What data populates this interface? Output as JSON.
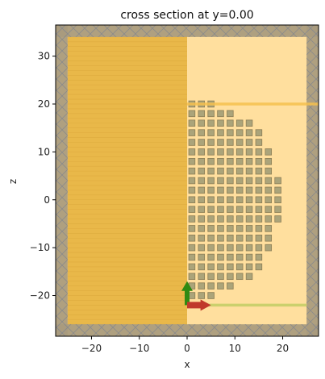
{
  "chart_data": {
    "type": "heatmap",
    "title": "cross section at y=0.00",
    "xlabel": "x",
    "ylabel": "z",
    "xlim": [
      -27.5,
      27.5
    ],
    "ylim": [
      -28.5,
      36.5
    ],
    "x_ticks": [
      -20,
      -10,
      0,
      10,
      20
    ],
    "x_tick_labels": [
      "−20",
      "−10",
      "0",
      "10",
      "20"
    ],
    "y_ticks": [
      -20,
      -10,
      0,
      10,
      20,
      30
    ],
    "y_tick_labels": [
      "−20",
      "−10",
      "0",
      "10",
      "20",
      "30"
    ],
    "grid": false,
    "boundary": {
      "x": [
        -27.5,
        27.5
      ],
      "z": [
        -28.5,
        36.5
      ],
      "pml_x_thickness": 2.5,
      "pml_z_thickness": 2.5
    },
    "simulation_domain": {
      "x": [
        -25,
        25
      ],
      "z": [
        -26,
        34
      ]
    },
    "substrate": {
      "x": [
        -25,
        0
      ],
      "z": [
        -26,
        34
      ],
      "color": "#e8b545"
    },
    "lattice": {
      "cell_size": 2,
      "square_size": 1.3,
      "center_z": 0,
      "x_start": 0,
      "row_extents": [
        {
          "z": 20,
          "x_max": 6
        },
        {
          "z": 18,
          "x_max": 10
        },
        {
          "z": 16,
          "x_max": 14
        },
        {
          "z": 14,
          "x_max": 16
        },
        {
          "z": 12,
          "x_max": 16
        },
        {
          "z": 10,
          "x_max": 18
        },
        {
          "z": 8,
          "x_max": 18
        },
        {
          "z": 6,
          "x_max": 18
        },
        {
          "z": 4,
          "x_max": 20
        },
        {
          "z": 2,
          "x_max": 20
        },
        {
          "z": 0,
          "x_max": 20
        },
        {
          "z": -2,
          "x_max": 20
        },
        {
          "z": -4,
          "x_max": 20
        },
        {
          "z": -6,
          "x_max": 18
        },
        {
          "z": -8,
          "x_max": 18
        },
        {
          "z": -10,
          "x_max": 18
        },
        {
          "z": -12,
          "x_max": 16
        },
        {
          "z": -14,
          "x_max": 16
        },
        {
          "z": -16,
          "x_max": 14
        },
        {
          "z": -18,
          "x_max": 10
        },
        {
          "z": -20,
          "x_max": 6
        }
      ]
    },
    "monitor_line": {
      "z": 20,
      "x": [
        0,
        27.5
      ],
      "color": "#f6c14e"
    },
    "source_line": {
      "z": -22,
      "x": [
        0,
        25
      ],
      "color": "#c8cf6a"
    },
    "source_arrows": {
      "origin": [
        0,
        -22
      ],
      "z_arrow_length": 5,
      "x_arrow_length": 5,
      "z_color": "#2f8a12",
      "x_color": "#c0392b"
    },
    "colors": {
      "background": "#ffdf9e",
      "pml": "#a89a7e",
      "lattice_fill": "#9c9a73",
      "lattice_stroke": "#8b7d55"
    }
  }
}
